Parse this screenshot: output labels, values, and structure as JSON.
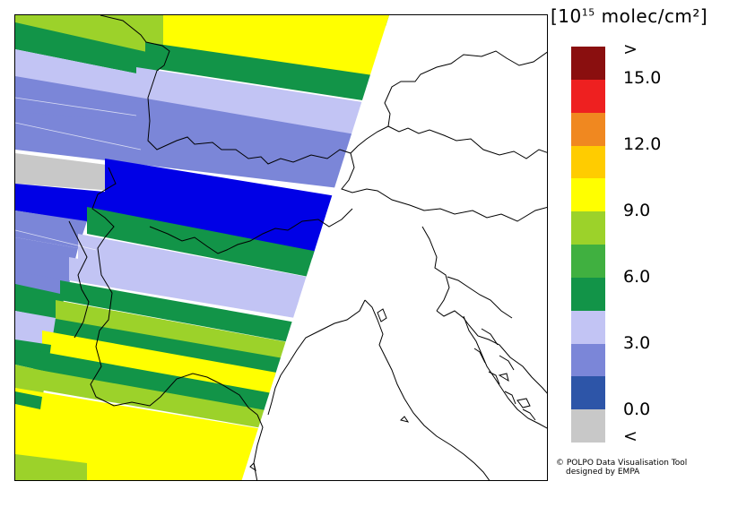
{
  "legend": {
    "title_base": "[10",
    "title_exp": "15",
    "title_unit": " molec/cm²]",
    "bins": [
      {
        "label": "<",
        "color": "#c8c8c8"
      },
      {
        "label": "",
        "color": "#2d55a8"
      },
      {
        "label": "",
        "color": "#7b86d8"
      },
      {
        "label": "",
        "color": "#c2c4f4"
      },
      {
        "label": "",
        "color": "#129448"
      },
      {
        "label": "",
        "color": "#40b040"
      },
      {
        "label": "",
        "color": "#9cd22a"
      },
      {
        "label": "",
        "color": "#ffff00"
      },
      {
        "label": "",
        "color": "#ffcc00"
      },
      {
        "label": "",
        "color": "#f08820"
      },
      {
        "label": "",
        "color": "#ee2020"
      },
      {
        "label": ">",
        "color": "#8a0f0f"
      }
    ],
    "tick_labels": [
      "0.0",
      "3.0",
      "6.0",
      "9.0",
      "12.0",
      "15.0"
    ],
    "under_label": "<",
    "over_label": ">"
  },
  "credit": {
    "line1": "© POLPO Data Visualisation Tool",
    "line2": "designed by EMPA"
  },
  "swath_colors": {
    "dark_green": "#129448",
    "light_green": "#9cd22a",
    "yellow": "#ffff00",
    "lavender": "#c2c4f4",
    "periwinkle": "#7b86d8",
    "blue": "#0000e6",
    "gray": "#c8c8c8"
  }
}
